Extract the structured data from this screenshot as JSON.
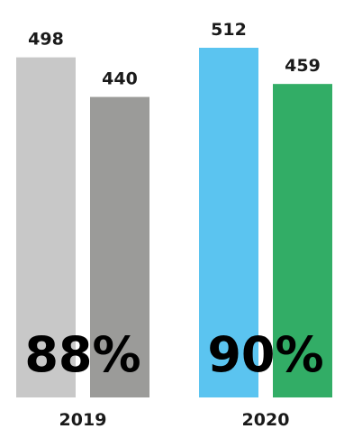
{
  "chart_data": {
    "type": "bar",
    "categories": [
      "2019",
      "2020"
    ],
    "series": [
      {
        "values": [
          498,
          512
        ],
        "colors": [
          "#c8c8c8",
          "#5bc4f0"
        ]
      },
      {
        "values": [
          440,
          459
        ],
        "colors": [
          "#9b9b99",
          "#32ad66"
        ]
      }
    ],
    "ratio_labels": [
      "88%",
      "90%"
    ],
    "ylim": [
      0,
      512
    ],
    "grid": false,
    "legend": "none"
  }
}
